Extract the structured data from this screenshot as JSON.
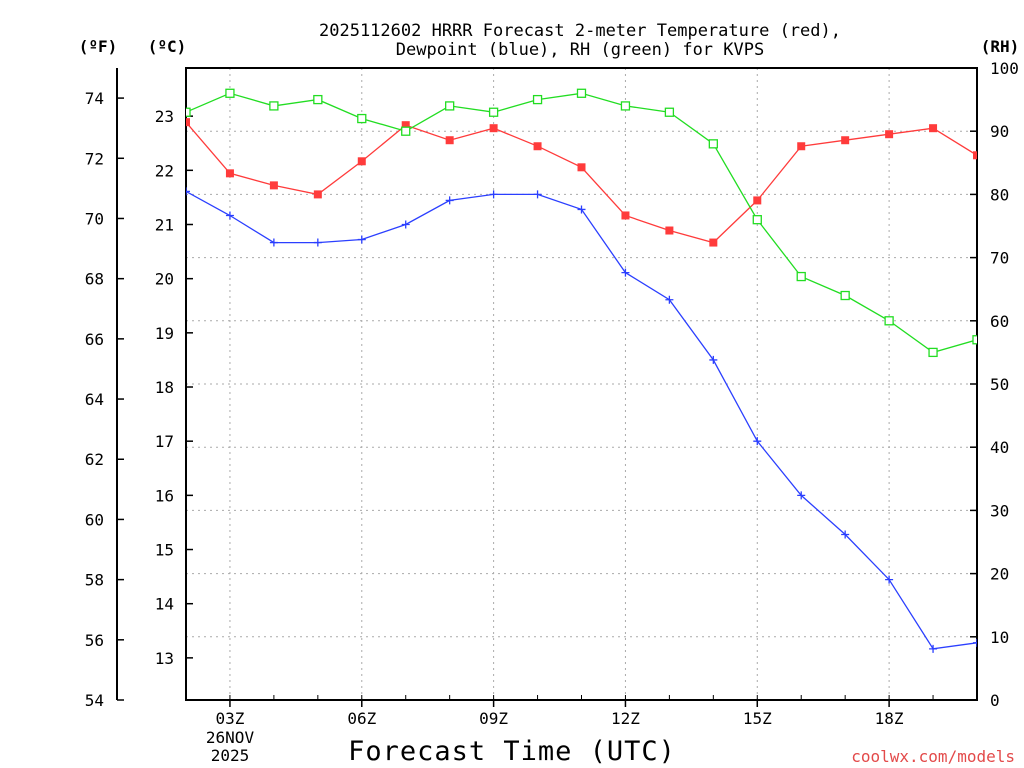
{
  "chart_data": {
    "type": "line",
    "title_line1": "2025112602 HRRR Forecast 2-meter Temperature (red),",
    "title_line2": "Dewpoint (blue), RH (green) for KVPS",
    "xlabel": "Forecast Time (UTC)",
    "watermark": "coolwx.com/models",
    "date_label_day": "26NOV",
    "date_label_year": "2025",
    "axis_headers": {
      "fahrenheit": "(ºF)",
      "celsius": "(ºC)",
      "rh": "(RH)"
    },
    "x_range_hours": [
      2,
      20
    ],
    "x_ticks": [
      {
        "hour": 3,
        "label": "03Z"
      },
      {
        "hour": 6,
        "label": "06Z"
      },
      {
        "hour": 9,
        "label": "09Z"
      },
      {
        "hour": 12,
        "label": "12Z"
      },
      {
        "hour": 15,
        "label": "15Z"
      },
      {
        "hour": 18,
        "label": "18Z"
      }
    ],
    "fahrenheit_range": [
      54,
      75
    ],
    "fahrenheit_ticks": [
      54,
      56,
      58,
      60,
      62,
      64,
      66,
      68,
      70,
      72,
      74
    ],
    "celsius_ticks": [
      13,
      14,
      15,
      16,
      17,
      18,
      19,
      20,
      21,
      22,
      23
    ],
    "rh_range": [
      0,
      100
    ],
    "rh_ticks": [
      0,
      10,
      20,
      30,
      40,
      50,
      60,
      70,
      80,
      90,
      100
    ],
    "hours": [
      2,
      3,
      4,
      5,
      6,
      7,
      8,
      9,
      10,
      11,
      12,
      13,
      14,
      15,
      16,
      17,
      18,
      19,
      20
    ],
    "series": [
      {
        "name": "Temperature",
        "unit": "F",
        "color": "#ff3b3b",
        "marker": "filled-square",
        "values": [
          73.2,
          71.5,
          71.1,
          70.8,
          71.9,
          73.1,
          72.6,
          73.0,
          72.4,
          71.7,
          70.1,
          69.6,
          69.2,
          70.6,
          72.4,
          72.6,
          72.8,
          73.0,
          72.1
        ]
      },
      {
        "name": "Dewpoint",
        "unit": "F",
        "color": "#2b3fff",
        "marker": "plus",
        "values": [
          70.9,
          70.1,
          69.2,
          69.2,
          69.3,
          69.8,
          70.6,
          70.8,
          70.8,
          70.3,
          68.2,
          67.3,
          65.3,
          62.6,
          60.8,
          59.5,
          58.0,
          55.7,
          55.9
        ]
      },
      {
        "name": "RH",
        "unit": "%",
        "color": "#22dd22",
        "marker": "open-square",
        "values": [
          93,
          96,
          94,
          95,
          92,
          90,
          94,
          93,
          95,
          96,
          94,
          93,
          88,
          76,
          67,
          64,
          60,
          55,
          57
        ]
      }
    ]
  }
}
